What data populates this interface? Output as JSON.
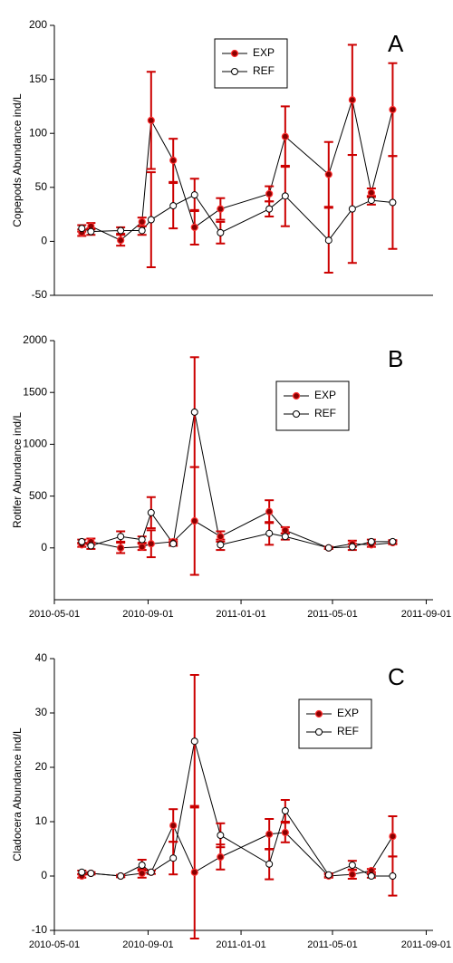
{
  "chart_data": [
    {
      "type": "line",
      "annotation": "A",
      "ylabel": "Copepods Abundance ind/L",
      "x": [
        "2010-06-06",
        "2010-06-18",
        "2010-07-27",
        "2010-08-24",
        "2010-09-05",
        "2010-10-04",
        "2010-11-01",
        "2010-12-05",
        "2011-02-07",
        "2011-02-28",
        "2011-04-26",
        "2011-05-27",
        "2011-06-21",
        "2011-07-19"
      ],
      "xlim": [
        "2010-05-01",
        "2011-09-10"
      ],
      "ylim": [
        -50,
        200
      ],
      "yticks": [
        -50,
        0,
        50,
        100,
        150,
        200
      ],
      "legend": "top",
      "error_color": "#cc0000",
      "series": [
        {
          "name": "EXP",
          "color": "#8b0000",
          "values": [
            8,
            14,
            1,
            18,
            112,
            75,
            13,
            30,
            44,
            97,
            62,
            131,
            45,
            122
          ],
          "errors": [
            3,
            3,
            5,
            4,
            45,
            20,
            16,
            10,
            7,
            28,
            30,
            51,
            4,
            43
          ]
        },
        {
          "name": "REF",
          "color": "#ffffff",
          "values": [
            12,
            9,
            10,
            10,
            20,
            33,
            43,
            8,
            30,
            42,
            1,
            30,
            38,
            36
          ],
          "errors": [
            3,
            3,
            3,
            4,
            44,
            21,
            15,
            10,
            7,
            28,
            30,
            50,
            4,
            43
          ]
        }
      ]
    },
    {
      "type": "line",
      "annotation": "B",
      "ylabel": "Rotifer Abundance ind/L",
      "x": [
        "2010-06-06",
        "2010-06-18",
        "2010-07-27",
        "2010-08-24",
        "2010-09-05",
        "2010-10-04",
        "2010-11-01",
        "2010-12-05",
        "2011-02-07",
        "2011-02-28",
        "2011-04-26",
        "2011-05-27",
        "2011-06-21",
        "2011-07-19"
      ],
      "xlim": [
        "2010-05-01",
        "2011-09-10"
      ],
      "xticks": [
        "2010-05-01",
        "2010-09-01",
        "2011-01-01",
        "2011-05-01",
        "2011-09-01"
      ],
      "ylim": [
        -500,
        2000
      ],
      "yticks": [
        0,
        500,
        1000,
        1500,
        2000
      ],
      "legend": "top",
      "error_color": "#cc0000",
      "series": [
        {
          "name": "EXP",
          "color": "#8b0000",
          "values": [
            30,
            60,
            0,
            10,
            40,
            60,
            260,
            110,
            350,
            170,
            0,
            40,
            30,
            50
          ],
          "errors": [
            20,
            30,
            50,
            30,
            130,
            20,
            520,
            50,
            110,
            30,
            10,
            30,
            20,
            15
          ]
        },
        {
          "name": "REF",
          "color": "#ffffff",
          "values": [
            60,
            20,
            110,
            80,
            340,
            40,
            1310,
            30,
            140,
            110,
            0,
            10,
            60,
            60
          ],
          "errors": [
            20,
            30,
            50,
            30,
            150,
            20,
            530,
            50,
            110,
            30,
            10,
            30,
            20,
            15
          ]
        }
      ]
    },
    {
      "type": "line",
      "annotation": "C",
      "ylabel": "Cladocera Abundance ind/L",
      "x": [
        "2010-06-06",
        "2010-06-18",
        "2010-07-27",
        "2010-08-24",
        "2010-09-05",
        "2010-10-04",
        "2010-11-01",
        "2010-12-05",
        "2011-02-07",
        "2011-02-28",
        "2011-04-26",
        "2011-05-27",
        "2011-06-21",
        "2011-07-19"
      ],
      "xlim": [
        "2010-05-01",
        "2011-09-10"
      ],
      "xticks": [
        "2010-05-01",
        "2010-09-01",
        "2011-01-01",
        "2011-05-01",
        "2011-09-01"
      ],
      "ylim": [
        -10,
        40
      ],
      "yticks": [
        -10,
        0,
        10,
        20,
        30,
        40
      ],
      "legend": "top",
      "error_color": "#cc0000",
      "series": [
        {
          "name": "EXP",
          "color": "#8b0000",
          "values": [
            0,
            0.5,
            0,
            0.5,
            0.7,
            9.3,
            0.7,
            3.5,
            7.7,
            8,
            0,
            0.3,
            1,
            7.3
          ],
          "errors": [
            0.3,
            0.2,
            0.2,
            0.8,
            0.3,
            3,
            12.2,
            2.3,
            2.8,
            1.8,
            0.3,
            0.8,
            0.3,
            3.7
          ]
        },
        {
          "name": "REF",
          "color": "#ffffff",
          "values": [
            0.7,
            0.5,
            0,
            2,
            0.7,
            3.3,
            24.8,
            7.5,
            2.2,
            12,
            0.2,
            2,
            0,
            0
          ],
          "errors": [
            0.3,
            0.2,
            0.2,
            1,
            0.3,
            3,
            12.2,
            2.2,
            2.8,
            2,
            0.3,
            0.8,
            0.3,
            3.6
          ]
        }
      ]
    }
  ]
}
